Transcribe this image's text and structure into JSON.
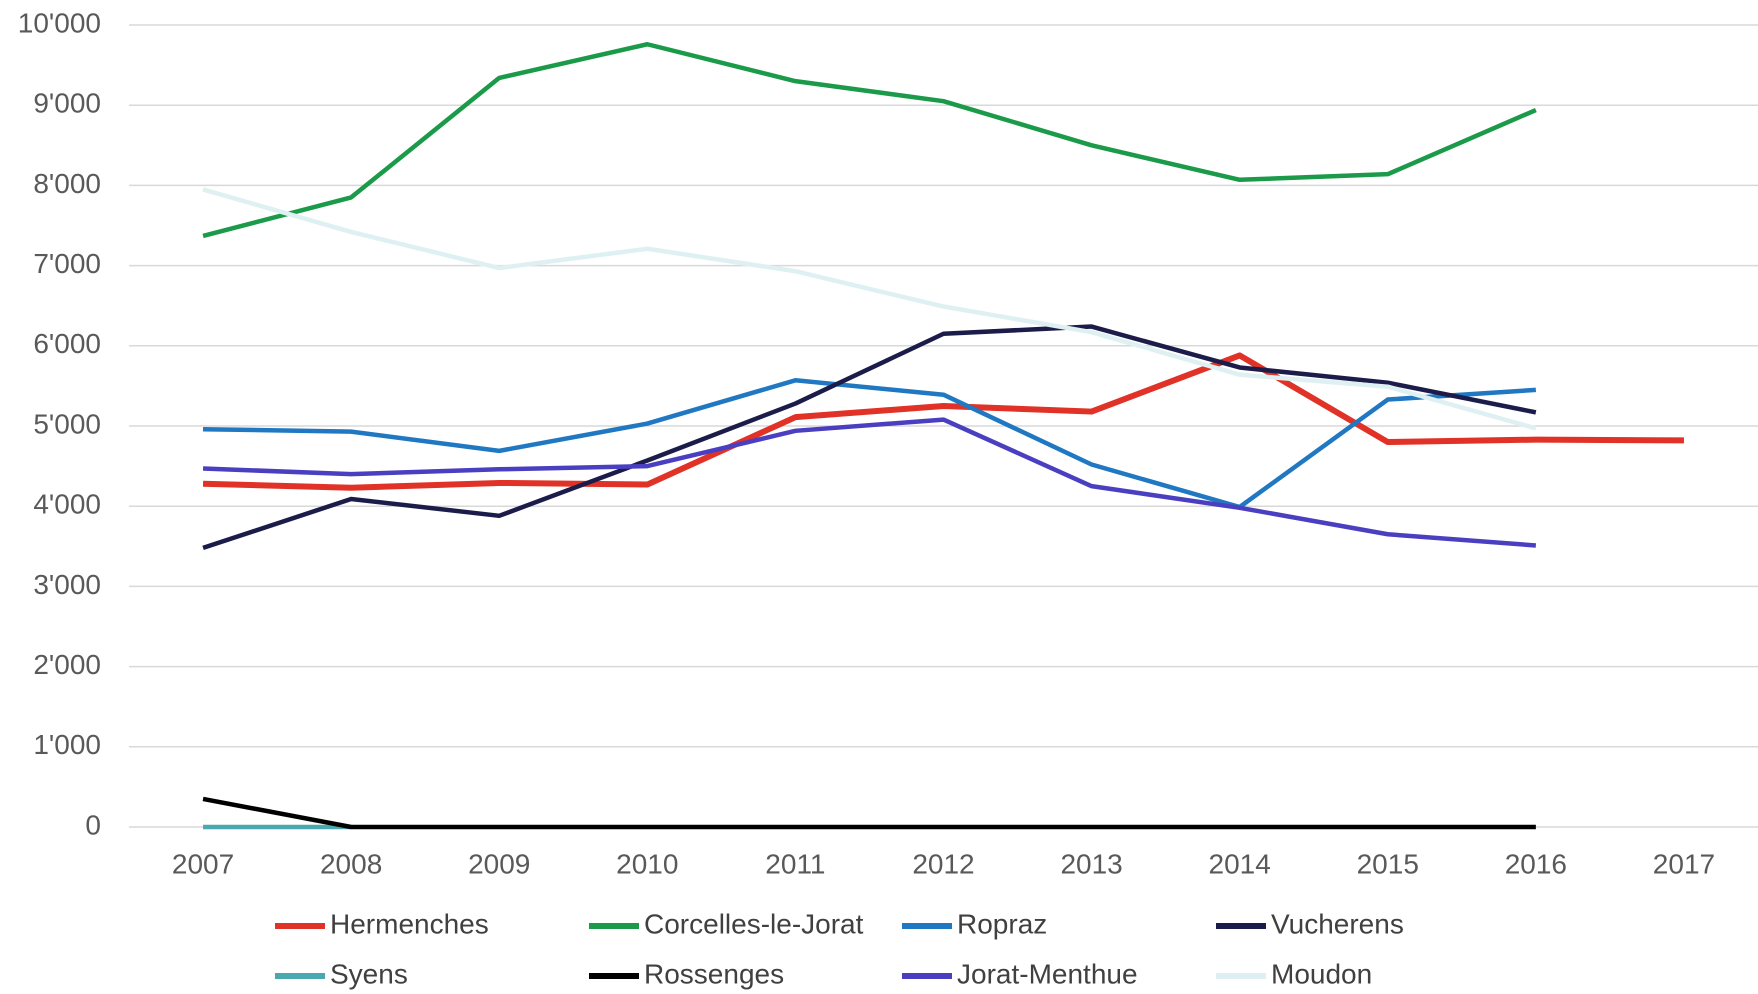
{
  "chart_data": {
    "type": "line",
    "categories": [
      "2007",
      "2008",
      "2009",
      "2010",
      "2011",
      "2012",
      "2013",
      "2014",
      "2015",
      "2016",
      "2017"
    ],
    "series": [
      {
        "name": "Hermenches",
        "color": "#e03226",
        "values": [
          4280,
          4230,
          4290,
          4270,
          5110,
          5250,
          5180,
          5880,
          4800,
          4830,
          4820
        ]
      },
      {
        "name": "Corcelles-le-Jorat",
        "color": "#1b9a4a",
        "values": [
          7370,
          7850,
          9340,
          9760,
          9300,
          9050,
          8500,
          8070,
          8140,
          8940,
          null
        ]
      },
      {
        "name": "Ropraz",
        "color": "#1f78c1",
        "values": [
          4960,
          4930,
          4690,
          5030,
          5570,
          5390,
          4520,
          3990,
          5330,
          5450,
          null
        ]
      },
      {
        "name": "Vucherens",
        "color": "#1c1c4a",
        "values": [
          3480,
          4090,
          3880,
          4570,
          5280,
          6150,
          6240,
          5730,
          5540,
          5170,
          null
        ]
      },
      {
        "name": "Syens",
        "color": "#4aa8b0",
        "values": [
          0,
          0,
          null,
          null,
          null,
          null,
          null,
          null,
          null,
          null,
          null
        ]
      },
      {
        "name": "Rossenges",
        "color": "#000000",
        "values": [
          350,
          0,
          0,
          0,
          0,
          0,
          0,
          0,
          0,
          0,
          null
        ]
      },
      {
        "name": "Jorat-Menthue",
        "color": "#4a3fc0",
        "values": [
          4470,
          4400,
          4460,
          4500,
          4940,
          5080,
          4250,
          3980,
          3650,
          3510,
          null
        ]
      },
      {
        "name": "Moudon",
        "color": "#dff0f2",
        "values": [
          7950,
          7420,
          6970,
          7210,
          6930,
          6490,
          6170,
          5640,
          5490,
          4970,
          null
        ]
      }
    ],
    "ylim": [
      0,
      10000
    ],
    "yticks": [
      0,
      {
        "value": 1000,
        "label": "1'000"
      },
      {
        "value": 2000,
        "label": "2'000"
      },
      {
        "value": 3000,
        "label": "3'000"
      },
      {
        "value": 4000,
        "label": "4'000"
      },
      {
        "value": 5000,
        "label": "5'000"
      },
      {
        "value": 6000,
        "label": "6'000"
      },
      {
        "value": 7000,
        "label": "7'000"
      },
      {
        "value": 8000,
        "label": "8'000"
      },
      {
        "value": 9000,
        "label": "9'000"
      },
      {
        "value": 10000,
        "label": "10'000"
      }
    ],
    "grid": true,
    "legend": "bottom"
  }
}
